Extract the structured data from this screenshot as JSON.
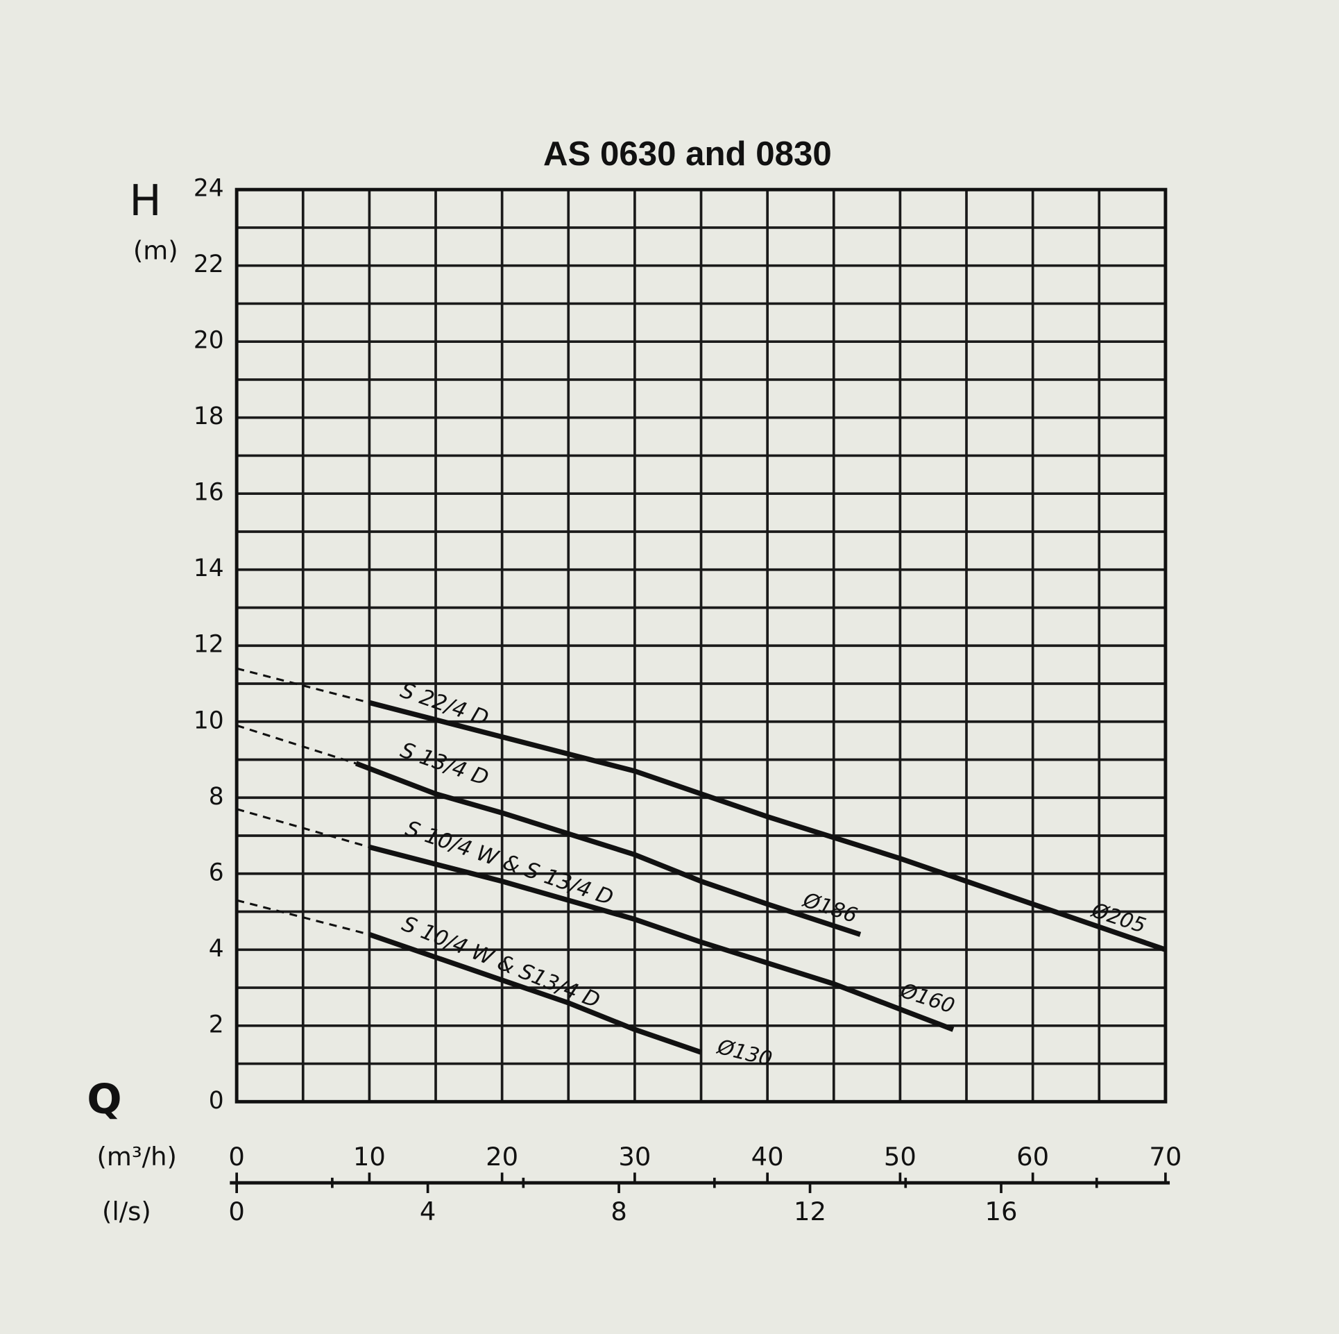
{
  "chart_data": {
    "type": "line",
    "title": "AS 0630 and 0830",
    "y_label": "H",
    "y_unit": "(m)",
    "x_label": "Q",
    "x_unit": "(m³/h)",
    "x2_unit": "(l/s)",
    "xlim": [
      0,
      70
    ],
    "xticks": [
      0,
      10,
      20,
      30,
      40,
      50,
      60,
      70
    ],
    "x2lim": [
      0,
      19.44
    ],
    "x2ticks": [
      0,
      4,
      8,
      12,
      16
    ],
    "x2_minor_ticks": [
      2,
      6,
      10,
      14,
      18
    ],
    "ylim": [
      0,
      24
    ],
    "yticks": [
      0,
      2,
      4,
      6,
      8,
      10,
      12,
      14,
      16,
      18,
      20,
      22,
      24
    ],
    "x_gridlines": [
      5,
      10,
      15,
      20,
      25,
      30,
      35,
      40,
      45,
      50,
      55,
      60,
      65
    ],
    "y_gridlines": [
      1,
      2,
      3,
      4,
      5,
      6,
      7,
      8,
      9,
      10,
      11,
      12,
      13,
      14,
      15,
      16,
      17,
      18,
      19,
      20,
      21,
      22,
      23
    ],
    "grid": true,
    "color": "#111111",
    "series": [
      {
        "name": "S 22/4 D",
        "impeller": "Ø205",
        "x": [
          10,
          20,
          30,
          40,
          50,
          60,
          70
        ],
        "values": [
          10.5,
          9.6,
          8.7,
          7.5,
          6.4,
          5.2,
          4.0
        ],
        "dashed_x": [
          0,
          10
        ],
        "dashed_values": [
          11.4,
          10.5
        ]
      },
      {
        "name": "S 13/4 D",
        "impeller": "Ø186",
        "x": [
          9,
          15,
          20,
          30,
          35,
          40,
          47
        ],
        "values": [
          8.9,
          8.1,
          7.6,
          6.5,
          5.8,
          5.2,
          4.4
        ],
        "dashed_x": [
          0,
          9
        ],
        "dashed_values": [
          9.9,
          8.9
        ]
      },
      {
        "name": "S 10/4 W & S 13/4 D",
        "impeller": "Ø160",
        "x": [
          10,
          20,
          30,
          35,
          45,
          54
        ],
        "values": [
          6.7,
          5.8,
          4.8,
          4.2,
          3.1,
          1.9
        ],
        "dashed_x": [
          0,
          10
        ],
        "dashed_values": [
          7.7,
          6.7
        ]
      },
      {
        "name": "S 10/4 W & S13/4 D",
        "impeller": "Ø130",
        "x": [
          10,
          20,
          25,
          30,
          35
        ],
        "values": [
          4.4,
          3.2,
          2.6,
          1.9,
          1.3
        ],
        "dashed_x": [
          0,
          10
        ],
        "dashed_values": [
          5.3,
          4.4
        ]
      }
    ]
  }
}
